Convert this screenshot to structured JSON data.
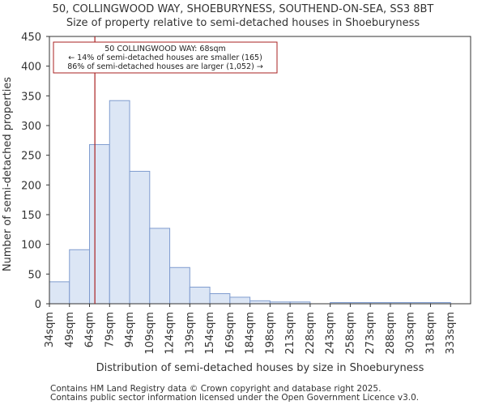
{
  "chart_data": {
    "type": "bar",
    "title": "50, COLLINGWOOD WAY, SHOEBURYNESS, SOUTHEND-ON-SEA, SS3 8BT",
    "subtitle": "Size of property relative to semi-detached houses in Shoeburyness",
    "xlabel": "Distribution of semi-detached houses by size in Shoeburyness",
    "ylabel": "Number of semi-detached properties",
    "ylim": [
      0,
      450
    ],
    "yticks": [
      0,
      50,
      100,
      150,
      200,
      250,
      300,
      350,
      400,
      450
    ],
    "categories": [
      "34sqm",
      "49sqm",
      "64sqm",
      "79sqm",
      "94sqm",
      "109sqm",
      "124sqm",
      "139sqm",
      "154sqm",
      "169sqm",
      "184sqm",
      "198sqm",
      "213sqm",
      "228sqm",
      "243sqm",
      "258sqm",
      "273sqm",
      "288sqm",
      "303sqm",
      "318sqm",
      "333sqm"
    ],
    "values": [
      37,
      91,
      268,
      342,
      223,
      127,
      61,
      28,
      17,
      11,
      5,
      3,
      3,
      0,
      2,
      2,
      2,
      2,
      2,
      2,
      0
    ],
    "bar_color": "#dce6f5",
    "bar_edge_color": "#7f9ccf",
    "marker": {
      "value": 68,
      "label": "50 COLLINGWOOD WAY: 68sqm",
      "color": "#aa2222"
    },
    "annotation": {
      "line1": "50 COLLINGWOOD WAY: 68sqm",
      "line2": "← 14% of semi-detached houses are smaller (165)",
      "line3": "86% of semi-detached houses are larger (1,052) →"
    },
    "grid": false
  },
  "footer": {
    "line1": "Contains HM Land Registry data © Crown copyright and database right 2025.",
    "line2": "Contains public sector information licensed under the Open Government Licence v3.0."
  }
}
